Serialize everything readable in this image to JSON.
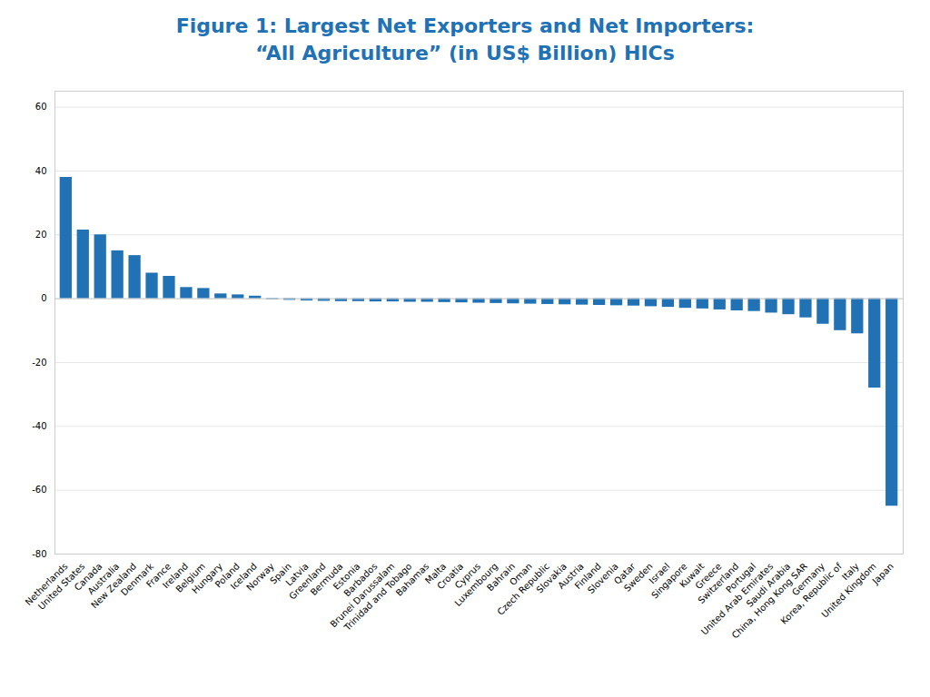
{
  "chart_data": {
    "type": "bar",
    "title": "Figure 1: Largest Net Exporters and Net Importers:",
    "subtitle": "“All Agriculture” (in US$ Billion) HICs",
    "color": "#2171B5",
    "categories": [
      "Netherlands",
      "United States",
      "Canada",
      "Australia",
      "New Zealand",
      "Denmark",
      "France",
      "Ireland",
      "Belgium",
      "Hungary",
      "Poland",
      "Iceland",
      "Norway",
      "Spain",
      "Latvia",
      "Greenland",
      "Bermuda",
      "Estonia",
      "Barbados",
      "Brunei Darussalam",
      "Trinidad and Tobago",
      "Bahamas",
      "Malta",
      "Croatia",
      "Cyprus",
      "Luxembourg",
      "Bahrain",
      "Oman",
      "Czech Republic",
      "Slovakia",
      "Austria",
      "Finland",
      "Slovenia",
      "Qatar",
      "Sweden",
      "Israel",
      "Singapore",
      "Kuwait",
      "Greece",
      "Switzerland",
      "Portugal",
      "United Arab Emirates",
      "Saudi Arabia",
      "China, Hong Kong SAR",
      "Germany",
      "Korea, Republic of",
      "Italy",
      "United Kingdom",
      "Japan"
    ],
    "values": [
      38.0,
      21.5,
      20.0,
      15.0,
      13.5,
      8.0,
      7.0,
      3.5,
      3.2,
      1.5,
      1.2,
      0.8,
      -0.3,
      -0.5,
      -0.7,
      -0.8,
      -0.9,
      -0.9,
      -1.0,
      -1.0,
      -1.1,
      -1.1,
      -1.2,
      -1.3,
      -1.4,
      -1.5,
      -1.6,
      -1.7,
      -1.8,
      -1.9,
      -2.0,
      -2.1,
      -2.2,
      -2.3,
      -2.5,
      -2.7,
      -3.0,
      -3.2,
      -3.5,
      -3.8,
      -4.0,
      -4.5,
      -5.0,
      -6.0,
      -8.0,
      -10.0,
      -11.0,
      -28.0,
      -65.0
    ],
    "ylim": [
      -80,
      65
    ],
    "yticks": [
      -80,
      -60,
      -40,
      -20,
      0,
      20,
      40,
      60
    ],
    "grid": true
  }
}
